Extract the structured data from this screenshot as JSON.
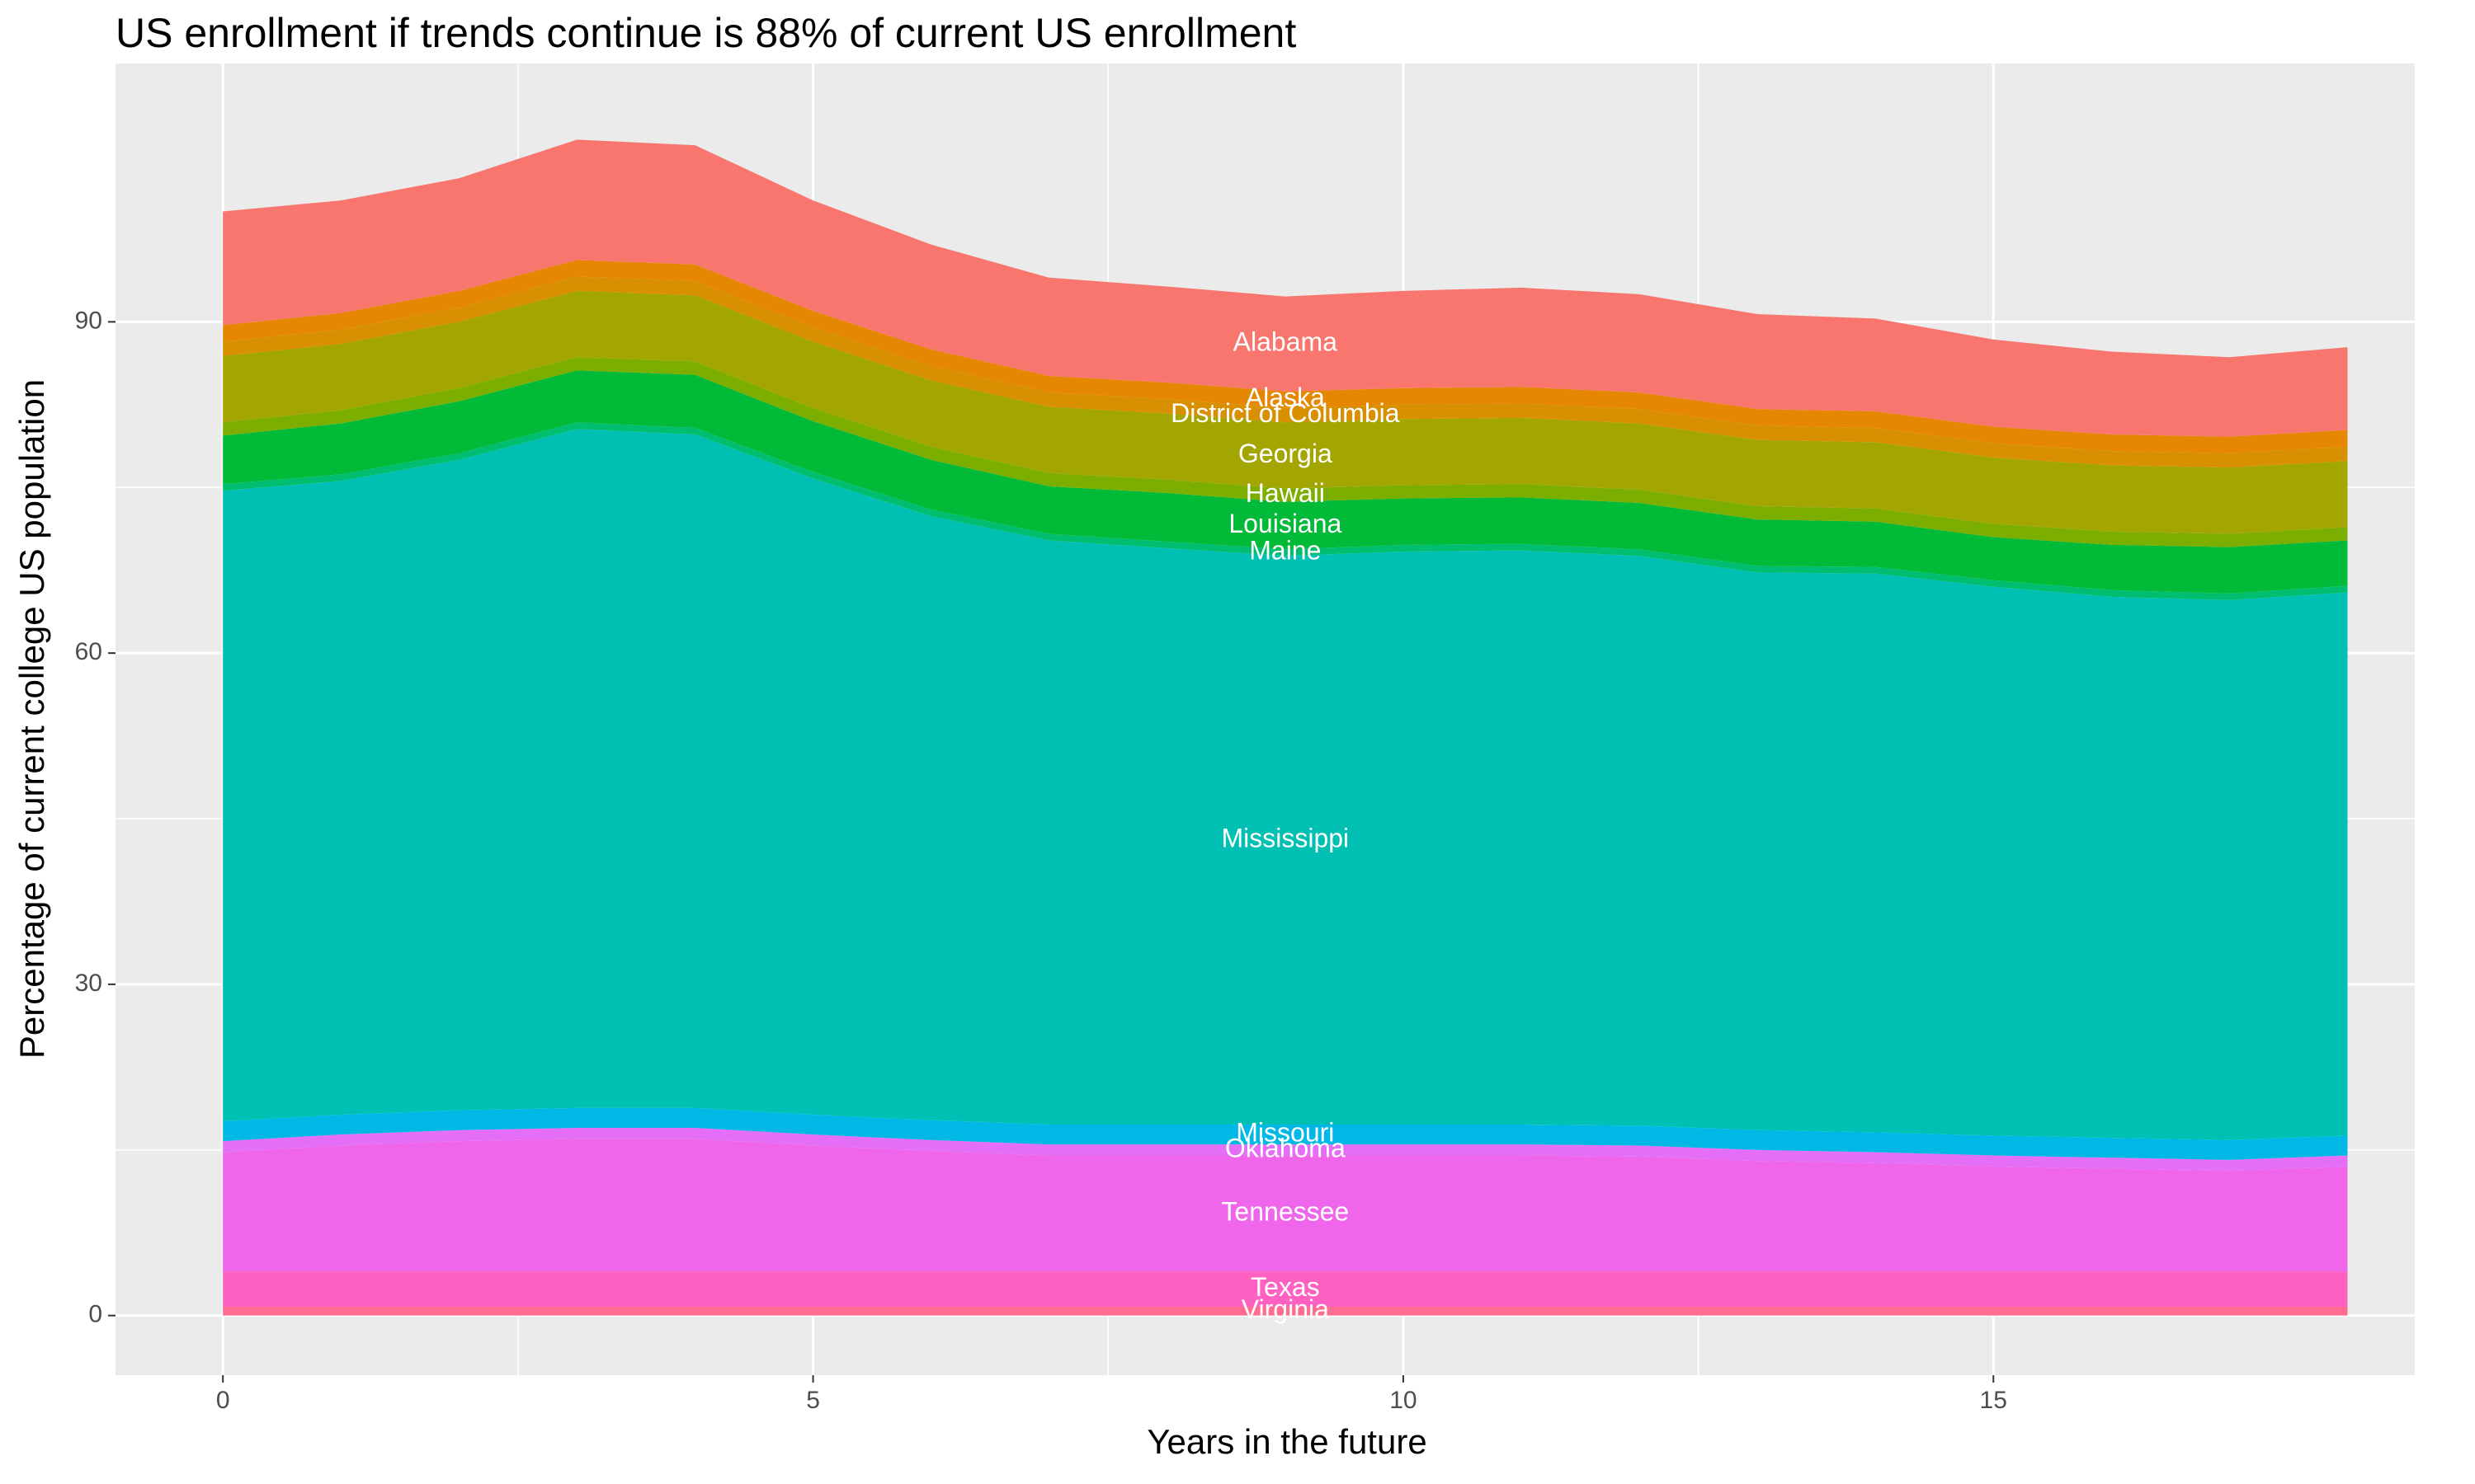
{
  "chart_data": {
    "type": "stacked_area",
    "title": "US enrollment if trends continue is 88% of current US enrollment",
    "xlabel": "Years in the future",
    "ylabel": "Percentage of current college US population",
    "x": [
      0,
      1,
      2,
      3,
      4,
      5,
      6,
      7,
      8,
      9,
      10,
      11,
      12,
      13,
      14,
      15,
      16,
      17,
      18
    ],
    "xlim": [
      -0.91,
      18.57
    ],
    "ylim": [
      -5.4,
      113.4
    ],
    "xticks": [
      0,
      5,
      10,
      15
    ],
    "yticks": [
      0,
      30,
      60,
      90
    ],
    "grid": true,
    "series": [
      {
        "name": "Virginia",
        "color": "#FF6C91",
        "values": [
          0.8,
          0.8,
          0.8,
          0.8,
          0.8,
          0.8,
          0.8,
          0.8,
          0.8,
          0.8,
          0.8,
          0.8,
          0.8,
          0.8,
          0.8,
          0.8,
          0.8,
          0.8,
          0.8
        ]
      },
      {
        "name": "Texas",
        "color": "#FF61C3",
        "values": [
          3.2,
          3.2,
          3.2,
          3.2,
          3.2,
          3.2,
          3.2,
          3.2,
          3.2,
          3.2,
          3.2,
          3.2,
          3.2,
          3.2,
          3.2,
          3.2,
          3.2,
          3.2,
          3.2
        ]
      },
      {
        "name": "Tennessee",
        "color": "#F066EA",
        "values": [
          10.8,
          11.4,
          11.8,
          12,
          12,
          11.4,
          10.9,
          10.5,
          10.5,
          10.5,
          10.5,
          10.5,
          10.4,
          10,
          9.8,
          9.5,
          9.3,
          9.1,
          9.5
        ]
      },
      {
        "name": "Oklahoma",
        "color": "#E46EF6",
        "values": [
          1,
          1,
          1,
          1,
          1,
          1,
          1,
          1,
          1,
          1,
          1,
          1,
          1,
          1,
          1,
          1,
          1,
          1,
          1
        ]
      },
      {
        "name": "Missouri",
        "color": "#00B8E5",
        "values": [
          1.8,
          1.8,
          1.8,
          1.8,
          1.8,
          1.8,
          1.8,
          1.8,
          1.8,
          1.8,
          1.8,
          1.8,
          1.8,
          1.8,
          1.8,
          1.8,
          1.8,
          1.8,
          1.8
        ]
      },
      {
        "name": "Mississippi",
        "color": "#00C0B4",
        "values": [
          57.1,
          57.4,
          58.9,
          61.5,
          61,
          57.6,
          54.7,
          52.9,
          52.2,
          51.5,
          51.9,
          52,
          51.6,
          50.5,
          50.6,
          49.7,
          49,
          48.9,
          49.2
        ]
      },
      {
        "name": "Maine",
        "color": "#00BE70",
        "values": [
          0.6,
          0.6,
          0.6,
          0.6,
          0.6,
          0.6,
          0.6,
          0.6,
          0.6,
          0.6,
          0.6,
          0.6,
          0.6,
          0.6,
          0.6,
          0.6,
          0.6,
          0.6,
          0.6
        ]
      },
      {
        "name": "Louisiana",
        "color": "#00BA38",
        "values": [
          4.4,
          4.6,
          4.7,
          4.7,
          4.8,
          4.6,
          4.5,
          4.3,
          4.4,
          4.3,
          4.2,
          4.2,
          4.2,
          4.2,
          4.1,
          3.9,
          4.1,
          4.2,
          4.1
        ]
      },
      {
        "name": "Hawaii",
        "color": "#7CAE00",
        "values": [
          1.2,
          1.2,
          1.2,
          1.2,
          1.2,
          1.2,
          1.2,
          1.2,
          1.2,
          1.2,
          1.2,
          1.2,
          1.2,
          1.2,
          1.2,
          1.2,
          1.2,
          1.2,
          1.2
        ]
      },
      {
        "name": "Georgia",
        "color": "#A3A500",
        "values": [
          6,
          6,
          6,
          6,
          6,
          6,
          6,
          6,
          6,
          6,
          6,
          6,
          6,
          6,
          6,
          6,
          6,
          6,
          6
        ]
      },
      {
        "name": "District of Columbia",
        "color": "#D89000",
        "values": [
          1.3,
          1.3,
          1.3,
          1.3,
          1.3,
          1.3,
          1.3,
          1.3,
          1.3,
          1.3,
          1.3,
          1.3,
          1.3,
          1.3,
          1.3,
          1.3,
          1.3,
          1.3,
          1.3
        ]
      },
      {
        "name": "Alaska",
        "color": "#E58700",
        "values": [
          1.5,
          1.5,
          1.5,
          1.5,
          1.5,
          1.5,
          1.5,
          1.5,
          1.5,
          1.5,
          1.5,
          1.5,
          1.5,
          1.5,
          1.5,
          1.5,
          1.5,
          1.5,
          1.5
        ]
      },
      {
        "name": "Alabama",
        "color": "#F8766D",
        "values": [
          10.3,
          10.2,
          10.2,
          10.9,
          10.8,
          10,
          9.5,
          8.9,
          8.7,
          8.6,
          8.8,
          9,
          8.9,
          8.6,
          8.4,
          7.9,
          7.5,
          7.2,
          7.5
        ]
      }
    ]
  }
}
